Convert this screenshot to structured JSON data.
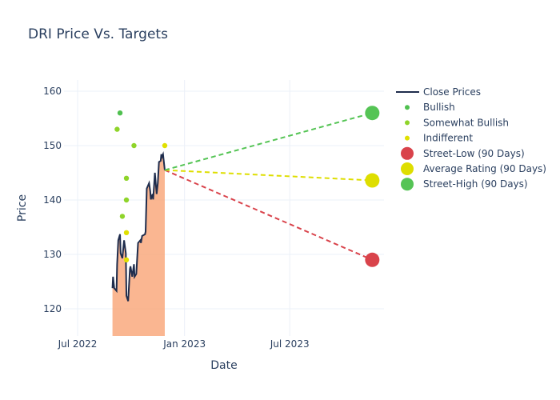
{
  "chart_data": {
    "type": "line",
    "title": "DRI Price Vs. Targets",
    "xlabel": "Date",
    "ylabel": "Price",
    "ylim": [
      115,
      162
    ],
    "xlim": [
      "2022-06-01",
      "2023-12-10"
    ],
    "x_ticks": [
      {
        "date": "2022-07-01",
        "label": "Jul 2022"
      },
      {
        "date": "2023-01-01",
        "label": "Jan 2023"
      },
      {
        "date": "2023-07-01",
        "label": "Jul 2023"
      }
    ],
    "y_ticks": [
      120,
      130,
      140,
      150,
      160
    ],
    "grid": true,
    "legend_position": "right",
    "colors": {
      "close": "#1f2d4d",
      "fill": "#f9a97e",
      "bullish": "#50c050",
      "somewhat_bullish": "#8fd42a",
      "indifferent": "#e0e000",
      "low": "#d9434b",
      "avg": "#dede00",
      "high": "#55c455"
    },
    "close_prices": {
      "name": "Close Prices",
      "x": [
        "2022-08-30",
        "2022-08-31",
        "2022-09-02",
        "2022-09-06",
        "2022-09-07",
        "2022-09-09",
        "2022-09-12",
        "2022-09-13",
        "2022-09-16",
        "2022-09-19",
        "2022-09-22",
        "2022-09-23",
        "2022-09-26",
        "2022-09-29",
        "2022-09-30",
        "2022-10-03",
        "2022-10-06",
        "2022-10-07",
        "2022-10-10",
        "2022-10-13",
        "2022-10-17",
        "2022-10-18",
        "2022-10-20",
        "2022-10-25",
        "2022-10-26",
        "2022-10-28",
        "2022-11-01",
        "2022-11-03",
        "2022-11-04",
        "2022-11-07",
        "2022-11-08",
        "2022-11-11",
        "2022-11-14",
        "2022-11-16",
        "2022-11-18",
        "2022-11-21",
        "2022-11-22",
        "2022-11-23",
        "2022-11-25",
        "2022-11-28"
      ],
      "y": [
        123.8,
        125.9,
        123.8,
        123.3,
        128.2,
        132.6,
        133.7,
        130.2,
        129.3,
        132.6,
        130.2,
        122.4,
        121.4,
        127.3,
        127.8,
        125.9,
        128.2,
        125.9,
        126.4,
        132.1,
        132.6,
        132.1,
        133.4,
        133.7,
        134.2,
        142.1,
        143.1,
        141.6,
        140.1,
        141.1,
        140.1,
        145.0,
        141.1,
        143.1,
        147.0,
        147.2,
        148.4,
        147.9,
        148.4,
        145.5
      ]
    },
    "ratings": [
      {
        "name": "Bullish",
        "points": [
          {
            "x": "2022-09-12",
            "y": 156
          }
        ]
      },
      {
        "name": "Somewhat Bullish",
        "points": [
          {
            "x": "2022-09-07",
            "y": 153
          },
          {
            "x": "2022-09-16",
            "y": 137
          },
          {
            "x": "2022-09-23",
            "y": 144
          },
          {
            "x": "2022-09-23",
            "y": 140
          },
          {
            "x": "2022-10-06",
            "y": 150
          }
        ]
      },
      {
        "name": "Indifferent",
        "points": [
          {
            "x": "2022-09-23",
            "y": 134
          },
          {
            "x": "2022-09-23",
            "y": 129
          },
          {
            "x": "2022-11-28",
            "y": 150
          }
        ]
      }
    ],
    "targets": {
      "start": {
        "x": "2022-11-28",
        "y": 145.5
      },
      "end_date": "2023-11-20",
      "series": [
        {
          "name": "Street-Low (90 Days)",
          "y": 129,
          "key": "low"
        },
        {
          "name": "Average Rating (90 Days)",
          "y": 143.6,
          "key": "avg"
        },
        {
          "name": "Street-High (90 Days)",
          "y": 156,
          "key": "high"
        }
      ]
    }
  }
}
